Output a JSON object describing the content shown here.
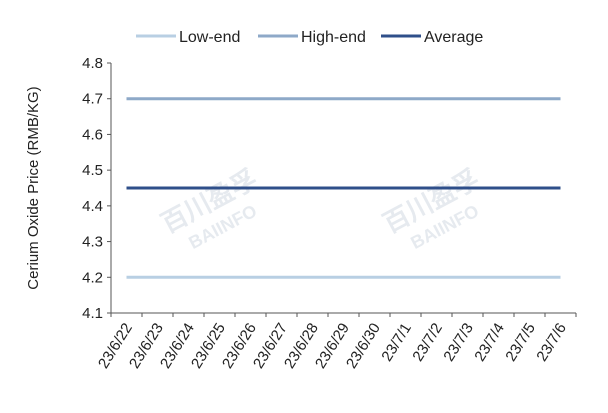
{
  "chart_data": {
    "type": "line",
    "x": [
      "23/6/22",
      "23/6/23",
      "23/6/24",
      "23/6/25",
      "23/6/26",
      "23/6/27",
      "23/6/28",
      "23/6/29",
      "23/6/30",
      "23/7/1",
      "23/7/2",
      "23/7/3",
      "23/7/4",
      "23/7/5",
      "23/7/6"
    ],
    "series": [
      {
        "name": "Low-end",
        "color": "#b8cfe3",
        "values": [
          4.2,
          4.2,
          4.2,
          4.2,
          4.2,
          4.2,
          4.2,
          4.2,
          4.2,
          4.2,
          4.2,
          4.2,
          4.2,
          4.2,
          4.2
        ]
      },
      {
        "name": "High-end",
        "color": "#8ea9c8",
        "values": [
          4.7,
          4.7,
          4.7,
          4.7,
          4.7,
          4.7,
          4.7,
          4.7,
          4.7,
          4.7,
          4.7,
          4.7,
          4.7,
          4.7,
          4.7
        ]
      },
      {
        "name": "Average",
        "color": "#2f4f8a",
        "values": [
          4.45,
          4.45,
          4.45,
          4.45,
          4.45,
          4.45,
          4.45,
          4.45,
          4.45,
          4.45,
          4.45,
          4.45,
          4.45,
          4.45,
          4.45
        ]
      }
    ],
    "ylabel": "Cerium Oxide Price (RMB/KG)",
    "ylim": [
      4.1,
      4.8
    ],
    "yticks": [
      "4.8",
      "4.7",
      "4.6",
      "4.5",
      "4.4",
      "4.3",
      "4.2",
      "4.1"
    ],
    "grid": false,
    "legend": "top"
  },
  "watermark": {
    "cn": "百川盈孚",
    "en": "BAIINFO"
  }
}
